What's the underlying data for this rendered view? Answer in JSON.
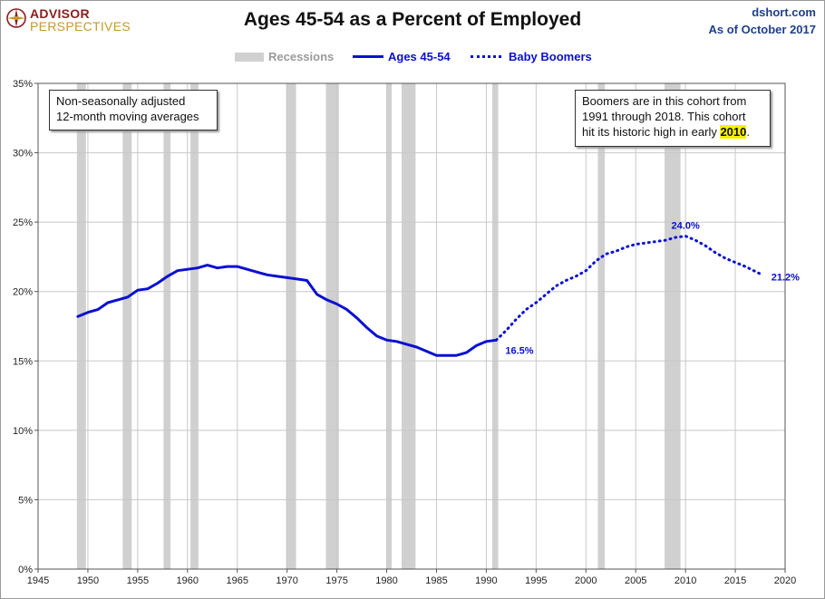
{
  "header": {
    "logo_line1": "ADVISOR",
    "logo_line2": "PERSPECTIVES",
    "title": "Ages 45-54 as a Percent of Employed",
    "source": "dshort.com",
    "date": "As of October 2017"
  },
  "legend": {
    "recessions": "Recessions",
    "series": "Ages 45-54",
    "boomers": "Baby Boomers"
  },
  "notes": {
    "method_line1": "Non-seasonally adjusted",
    "method_line2": "12-month moving averages",
    "boomer_line1": "Boomers are in this cohort from",
    "boomer_line2": "1991  through 2018.  This cohort",
    "boomer_line3_pre": "hit its historic high in early ",
    "boomer_line3_hl": "2010",
    "boomer_line3_post": "."
  },
  "colors": {
    "series": "#0a10d0",
    "recession": "#d0d0d0",
    "grid": "#c8c8c8",
    "logo_red": "#8c1d1d",
    "logo_gold": "#c49a2c"
  },
  "chart_data": {
    "type": "line",
    "title": "Ages 45-54 as a Percent of Employed",
    "xlim": [
      1945,
      2020
    ],
    "ylim": [
      0,
      35
    ],
    "x_ticks": [
      1945,
      1950,
      1955,
      1960,
      1965,
      1970,
      1975,
      1980,
      1985,
      1990,
      1995,
      2000,
      2005,
      2010,
      2015,
      2020
    ],
    "y_ticks": [
      0,
      5,
      10,
      15,
      20,
      25,
      30,
      35
    ],
    "y_tick_labels": [
      "0%",
      "5%",
      "10%",
      "15%",
      "20%",
      "25%",
      "30%",
      "35%"
    ],
    "grid": "vertical and horizontal",
    "legend_position": "top-center",
    "recessions": [
      [
        1948.9,
        1949.8
      ],
      [
        1953.5,
        1954.4
      ],
      [
        1957.6,
        1958.3
      ],
      [
        1960.3,
        1961.1
      ],
      [
        1969.9,
        1970.9
      ],
      [
        1973.9,
        1975.2
      ],
      [
        1980.0,
        1980.5
      ],
      [
        1981.5,
        1982.9
      ],
      [
        1990.6,
        1991.2
      ],
      [
        2001.2,
        2001.9
      ],
      [
        2007.9,
        2009.5
      ]
    ],
    "series": [
      {
        "name": "Ages 45-54",
        "style": "solid",
        "points": [
          [
            1949.0,
            18.2
          ],
          [
            1950.0,
            18.5
          ],
          [
            1951.0,
            18.7
          ],
          [
            1952.0,
            19.2
          ],
          [
            1953.0,
            19.4
          ],
          [
            1954.0,
            19.6
          ],
          [
            1955.0,
            20.1
          ],
          [
            1956.0,
            20.2
          ],
          [
            1957.0,
            20.6
          ],
          [
            1958.0,
            21.1
          ],
          [
            1959.0,
            21.5
          ],
          [
            1960.0,
            21.6
          ],
          [
            1961.0,
            21.7
          ],
          [
            1962.0,
            21.9
          ],
          [
            1963.0,
            21.7
          ],
          [
            1964.0,
            21.8
          ],
          [
            1965.0,
            21.8
          ],
          [
            1966.0,
            21.6
          ],
          [
            1967.0,
            21.4
          ],
          [
            1968.0,
            21.2
          ],
          [
            1969.0,
            21.1
          ],
          [
            1970.0,
            21.0
          ],
          [
            1971.0,
            20.9
          ],
          [
            1972.0,
            20.8
          ],
          [
            1973.0,
            19.8
          ],
          [
            1974.0,
            19.4
          ],
          [
            1975.0,
            19.1
          ],
          [
            1976.0,
            18.7
          ],
          [
            1977.0,
            18.1
          ],
          [
            1978.0,
            17.4
          ],
          [
            1979.0,
            16.8
          ],
          [
            1980.0,
            16.5
          ],
          [
            1981.0,
            16.4
          ],
          [
            1982.0,
            16.2
          ],
          [
            1983.0,
            16.0
          ],
          [
            1984.0,
            15.7
          ],
          [
            1985.0,
            15.4
          ],
          [
            1986.0,
            15.4
          ],
          [
            1987.0,
            15.4
          ],
          [
            1988.0,
            15.6
          ],
          [
            1989.0,
            16.1
          ],
          [
            1990.0,
            16.4
          ],
          [
            1991.0,
            16.5
          ]
        ]
      },
      {
        "name": "Baby Boomers",
        "style": "dotted",
        "points": [
          [
            1991.0,
            16.5
          ],
          [
            1992.0,
            17.2
          ],
          [
            1993.0,
            18.0
          ],
          [
            1994.0,
            18.7
          ],
          [
            1995.0,
            19.2
          ],
          [
            1996.0,
            19.8
          ],
          [
            1997.0,
            20.4
          ],
          [
            1998.0,
            20.8
          ],
          [
            1999.0,
            21.1
          ],
          [
            2000.0,
            21.5
          ],
          [
            2001.0,
            22.2
          ],
          [
            2002.0,
            22.7
          ],
          [
            2003.0,
            22.9
          ],
          [
            2004.0,
            23.2
          ],
          [
            2005.0,
            23.4
          ],
          [
            2006.0,
            23.5
          ],
          [
            2007.0,
            23.6
          ],
          [
            2008.0,
            23.7
          ],
          [
            2009.0,
            23.9
          ],
          [
            2010.0,
            24.0
          ],
          [
            2011.0,
            23.7
          ],
          [
            2012.0,
            23.3
          ],
          [
            2013.0,
            22.8
          ],
          [
            2014.0,
            22.4
          ],
          [
            2015.0,
            22.1
          ],
          [
            2016.0,
            21.8
          ],
          [
            2017.7,
            21.2
          ]
        ]
      }
    ],
    "annotations": [
      {
        "x": 1991.0,
        "y": 16.5,
        "text": "16.5%"
      },
      {
        "x": 2010.0,
        "y": 24.0,
        "text": "24.0%"
      },
      {
        "x": 2017.7,
        "y": 21.2,
        "text": "21.2%"
      }
    ]
  }
}
